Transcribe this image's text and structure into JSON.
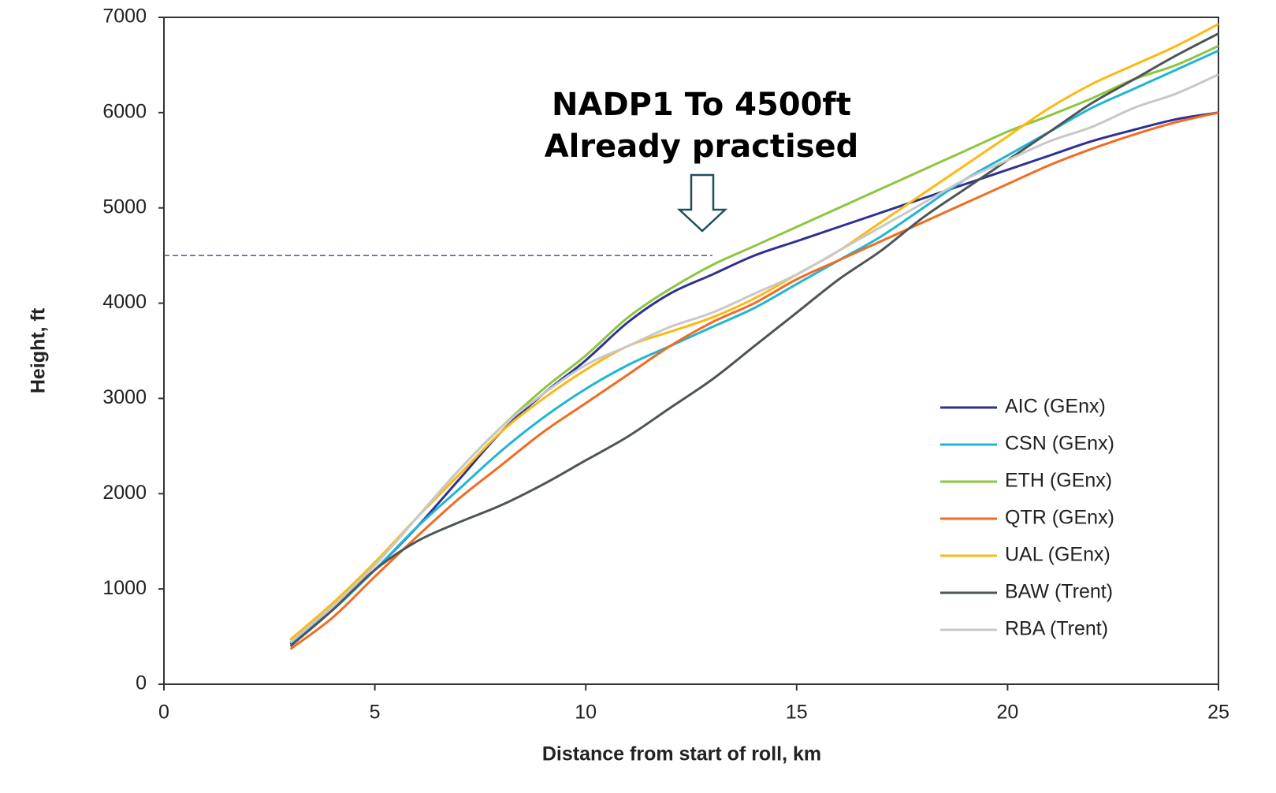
{
  "chart_data": {
    "type": "line",
    "annotations": [
      "NADP1 To 4500ft",
      "Already practised"
    ],
    "xlabel": "Distance from start of roll, km",
    "ylabel": "Height, ft",
    "x": [
      3,
      4,
      5,
      6,
      7,
      8,
      9,
      10,
      11,
      12,
      13,
      14,
      15,
      16,
      17,
      18,
      19,
      20,
      21,
      22,
      23,
      24,
      25
    ],
    "series": [
      {
        "name": "AIC (GEnx)",
        "color": "#2e3192",
        "values": [
          420,
          780,
          1200,
          1650,
          2150,
          2650,
          3050,
          3400,
          3800,
          4100,
          4300,
          4500,
          4650,
          4800,
          4950,
          5100,
          5250,
          5400,
          5550,
          5700,
          5820,
          5930,
          6000
        ]
      },
      {
        "name": "CSN (GEnx)",
        "color": "#1fb5d6",
        "values": [
          430,
          780,
          1200,
          1650,
          2050,
          2450,
          2800,
          3100,
          3350,
          3550,
          3750,
          3950,
          4200,
          4450,
          4700,
          5000,
          5300,
          5550,
          5800,
          6050,
          6250,
          6450,
          6650
        ]
      },
      {
        "name": "ETH (GEnx)",
        "color": "#8dc63f",
        "values": [
          460,
          820,
          1250,
          1750,
          2250,
          2700,
          3100,
          3450,
          3850,
          4150,
          4400,
          4600,
          4800,
          5000,
          5200,
          5400,
          5600,
          5800,
          5970,
          6150,
          6350,
          6500,
          6700
        ]
      },
      {
        "name": "QTR (GEnx)",
        "color": "#f26b21",
        "values": [
          370,
          700,
          1130,
          1550,
          1950,
          2300,
          2650,
          2950,
          3250,
          3550,
          3800,
          4000,
          4250,
          4450,
          4650,
          4850,
          5050,
          5250,
          5450,
          5620,
          5770,
          5900,
          6000
        ]
      },
      {
        "name": "UAL (GEnx)",
        "color": "#fdb913",
        "values": [
          470,
          850,
          1280,
          1750,
          2200,
          2650,
          3000,
          3300,
          3550,
          3700,
          3850,
          4050,
          4300,
          4550,
          4850,
          5150,
          5450,
          5750,
          6050,
          6300,
          6500,
          6700,
          6930
        ]
      },
      {
        "name": "BAW (Trent)",
        "color": "#4d5557",
        "values": [
          400,
          780,
          1200,
          1500,
          1700,
          1880,
          2100,
          2350,
          2600,
          2900,
          3200,
          3550,
          3900,
          4250,
          4550,
          4900,
          5200,
          5500,
          5800,
          6100,
          6350,
          6600,
          6830
        ]
      },
      {
        "name": "RBA (Trent)",
        "color": "#c8c8c8",
        "values": [
          440,
          820,
          1250,
          1750,
          2250,
          2700,
          3050,
          3350,
          3550,
          3750,
          3900,
          4100,
          4300,
          4550,
          4800,
          5050,
          5300,
          5500,
          5700,
          5850,
          6050,
          6200,
          6400
        ]
      }
    ],
    "reference_line": {
      "y": 4500,
      "x": [
        0,
        13
      ],
      "color": "#3a5f8a"
    },
    "xlim": [
      0,
      25
    ],
    "xticks": [
      0,
      5,
      10,
      15,
      20,
      25
    ],
    "ylim": [
      0,
      7000
    ],
    "yticks": [
      0,
      1000,
      2000,
      3000,
      4000,
      5000,
      6000,
      7000
    ],
    "grid": false,
    "legend": "lower right"
  }
}
